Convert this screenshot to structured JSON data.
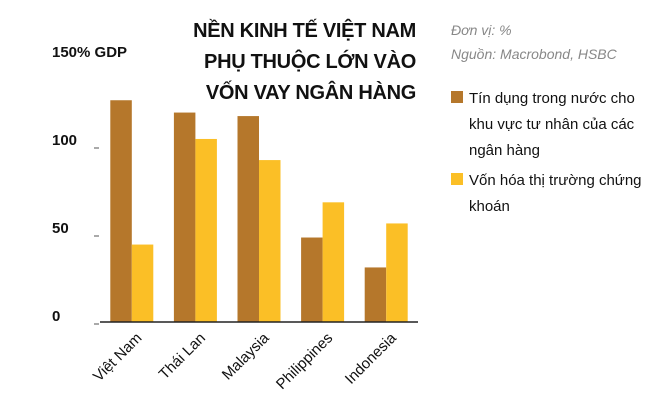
{
  "chart_data": {
    "type": "bar",
    "title": "NỀN KINH TẾ VIỆT NAM PHỤ THUỘC LỚN VÀO VỐN VAY NGÂN HÀNG",
    "notes": [
      "Đơn vị: %",
      "Nguồn: Macrobond, HSBC"
    ],
    "categories": [
      "Việt Nam",
      "Thái Lan",
      "Malaysia",
      "Philippines",
      "Indonesia"
    ],
    "series": [
      {
        "name": "Tín dụng trong nước cho khu vực tư nhân của các ngân hàng",
        "color": "#b5772b",
        "values": [
          126,
          119,
          117,
          48,
          31
        ]
      },
      {
        "name": "Vốn hóa thị trường chứng khoán",
        "color": "#fbbf26",
        "values": [
          44,
          104,
          92,
          68,
          56
        ]
      }
    ],
    "ylim": [
      0,
      150
    ],
    "yticks": [
      0,
      50,
      100,
      {
        "value": 150,
        "label": "150% GDP"
      }
    ],
    "grid": false
  }
}
